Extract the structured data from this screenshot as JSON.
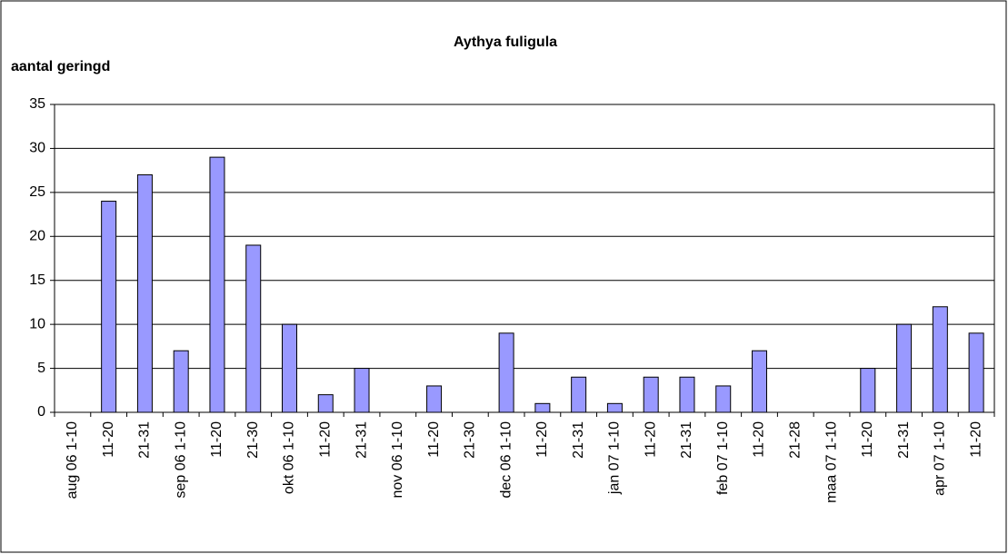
{
  "chart_data": {
    "type": "bar",
    "title": "Aythya fuligula",
    "y_label": "aantal geringd",
    "categories": [
      "aug 06  1-10",
      "11-20",
      "21-31",
      "sep 06  1-10",
      "11-20",
      "21-30",
      "okt 06  1-10",
      "11-20",
      "21-31",
      "nov 06  1-10",
      "11-20",
      "21-30",
      "dec 06  1-10",
      "11-20",
      "21-31",
      "jan 07  1-10",
      "11-20",
      "21-31",
      "feb 07  1-10",
      "11-20",
      "21-28",
      "maa 07  1-10",
      "11-20",
      "21-31",
      "apr 07  1-10",
      "11-20"
    ],
    "values": [
      0,
      24,
      27,
      7,
      29,
      19,
      10,
      2,
      5,
      0,
      3,
      0,
      9,
      1,
      4,
      1,
      4,
      4,
      3,
      7,
      0,
      0,
      5,
      10,
      12,
      9
    ],
    "color": "#9999ff",
    "ylim": [
      0,
      35
    ],
    "yticks": [
      0,
      5,
      10,
      15,
      20,
      25,
      30,
      35
    ],
    "grid": true
  }
}
